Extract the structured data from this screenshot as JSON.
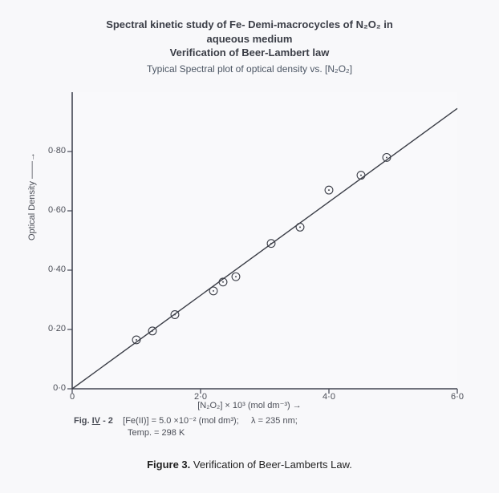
{
  "chart": {
    "type": "scatter-with-regression",
    "background_color": "#f8f8fa",
    "plot_bg": "#f9f9fb",
    "title_lines": [
      "Spectral kinetic study of Fe- Demi-macrocycles of N₂O₂ in",
      "aqueous medium",
      "Verification of Beer-Lambert law"
    ],
    "subtitle": "Typical Spectral plot of optical density vs. [N₂O₂]",
    "title_fontsize": 13,
    "subtitle_fontsize": 12,
    "title_color": "#3a3d46",
    "xlabel": "[N₂O₂] × 10³  (mol dm⁻³) →",
    "ylabel": "Optical Density ——→",
    "label_fontsize": 11,
    "label_color": "#4b4e57",
    "axis_color": "#424552",
    "axis_width": 1.6,
    "frame_right_top": false,
    "xlim": [
      0,
      6.0
    ],
    "ylim": [
      0.0,
      1.0
    ],
    "xticks": [
      0,
      2.0,
      4.0,
      6.0
    ],
    "xtick_labels": [
      "0",
      "2·0",
      "4·0",
      "6·0"
    ],
    "yticks": [
      0.0,
      0.2,
      0.4,
      0.6,
      0.8
    ],
    "ytick_labels": [
      "0·0",
      "0·20",
      "0·40",
      "0·60",
      "0·80"
    ],
    "tick_len": 6,
    "tick_color": "#424552",
    "tick_label_color": "#4b4e57",
    "tick_fontsize": 11,
    "grid": false,
    "regression_line": {
      "x1": 0,
      "y1": 0,
      "x2": 6.0,
      "y2": 0.945,
      "color": "#3b3e47",
      "width": 1.4
    },
    "markers": {
      "shape": "circle-open-dot",
      "outer_radius": 4.9,
      "inner_dot_radius": 0.95,
      "stroke_color": "#3b3e47",
      "stroke_width": 1.1,
      "fill": "none"
    },
    "points": [
      {
        "x": 1.0,
        "y": 0.165
      },
      {
        "x": 1.25,
        "y": 0.195
      },
      {
        "x": 1.6,
        "y": 0.25
      },
      {
        "x": 2.2,
        "y": 0.33
      },
      {
        "x": 2.35,
        "y": 0.36
      },
      {
        "x": 2.55,
        "y": 0.378
      },
      {
        "x": 3.1,
        "y": 0.49
      },
      {
        "x": 3.55,
        "y": 0.545
      },
      {
        "x": 4.0,
        "y": 0.67
      },
      {
        "x": 4.5,
        "y": 0.72
      },
      {
        "x": 4.9,
        "y": 0.78
      }
    ]
  },
  "inner_caption": {
    "fig_label": "Fig. IV - 2",
    "cond1": "[Fe(II)]   =  5.0 ×10⁻² (mol dm³);",
    "cond2": "λ = 235 nm;",
    "cond3": "Temp.  =  298 K",
    "fontsize": 11,
    "color": "#4b4e57"
  },
  "outer_caption": {
    "label": "Figure 3.",
    "text": " Verification of Beer-Lamberts Law.",
    "fontsize": 13,
    "color": "#222222"
  }
}
